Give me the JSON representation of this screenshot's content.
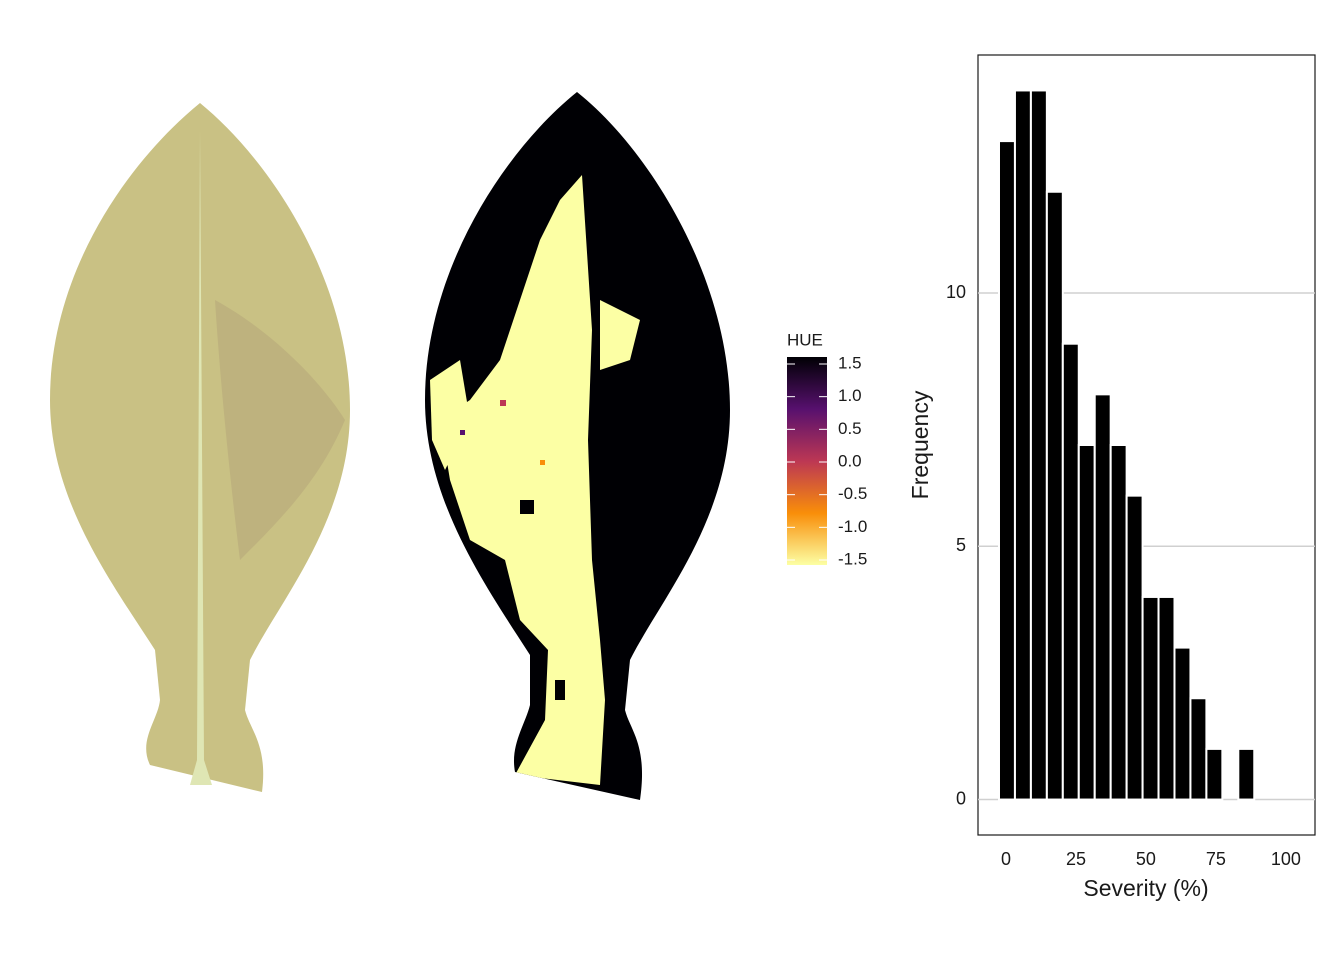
{
  "chart_data": [
    {
      "type": "raster",
      "legend_title": "HUE",
      "colors": [
        "#fcffa4",
        "#f98e09",
        "#bc3754",
        "#57106e",
        "#000004"
      ],
      "colorbar_ticks": [
        1.5,
        {
          "value": 1,
          "label": "1.0"
        },
        0.5,
        {
          "value": 0,
          "label": "0.0"
        },
        -0.5,
        {
          "value": -1,
          "label": "-1.0"
        },
        -1.5
      ]
    },
    {
      "type": "histogram",
      "xlabel": "Severity (%)",
      "ylabel": "Frequency",
      "color": "#000000",
      "bins": [
        -2.5,
        3.2,
        8.9,
        14.6,
        20.3,
        26,
        31.7,
        37.4,
        43.1,
        48.8,
        54.5,
        60.2,
        65.9,
        71.6,
        77.3,
        83,
        88.7
      ],
      "counts": [
        13,
        14,
        14,
        12,
        9,
        7,
        8,
        7,
        6,
        4,
        4,
        3,
        2,
        1,
        0,
        1
      ],
      "xlim": [
        -10,
        110.4
      ],
      "ylim": [
        -0.7,
        14.7
      ],
      "xticks": [
        0,
        25,
        50,
        75,
        100
      ],
      "yticks": [
        0,
        5,
        10
      ],
      "grid": true
    }
  ]
}
